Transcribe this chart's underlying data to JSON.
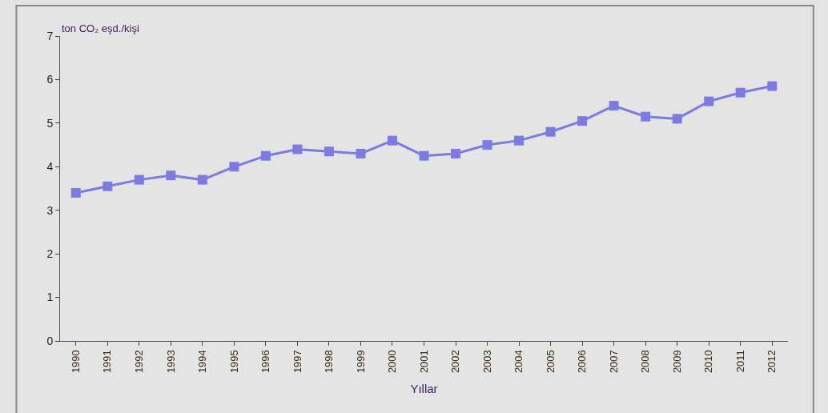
{
  "chart_data": {
    "type": "line",
    "ylabel": "ton CO₂ eşd./kişi",
    "xlabel": "Yıllar",
    "categories": [
      "1990",
      "1991",
      "1992",
      "1993",
      "1994",
      "1995",
      "1996",
      "1997",
      "1998",
      "1999",
      "2000",
      "2001",
      "2002",
      "2003",
      "2004",
      "2005",
      "2006",
      "2007",
      "2008",
      "2009",
      "2010",
      "2011",
      "2012"
    ],
    "series": [
      {
        "color": "#7b7be0",
        "values": [
          3.4,
          3.55,
          3.7,
          3.8,
          3.7,
          4.0,
          4.25,
          4.4,
          4.35,
          4.3,
          4.6,
          4.25,
          4.3,
          4.5,
          4.6,
          4.8,
          5.05,
          5.4,
          5.15,
          5.1,
          5.5,
          5.7,
          5.85
        ]
      }
    ],
    "ylim": [
      0,
      7
    ],
    "yticks": [
      0,
      1,
      2,
      3,
      4,
      5,
      6,
      7
    ],
    "grid": false,
    "marker": "square",
    "line_style": "solid"
  }
}
